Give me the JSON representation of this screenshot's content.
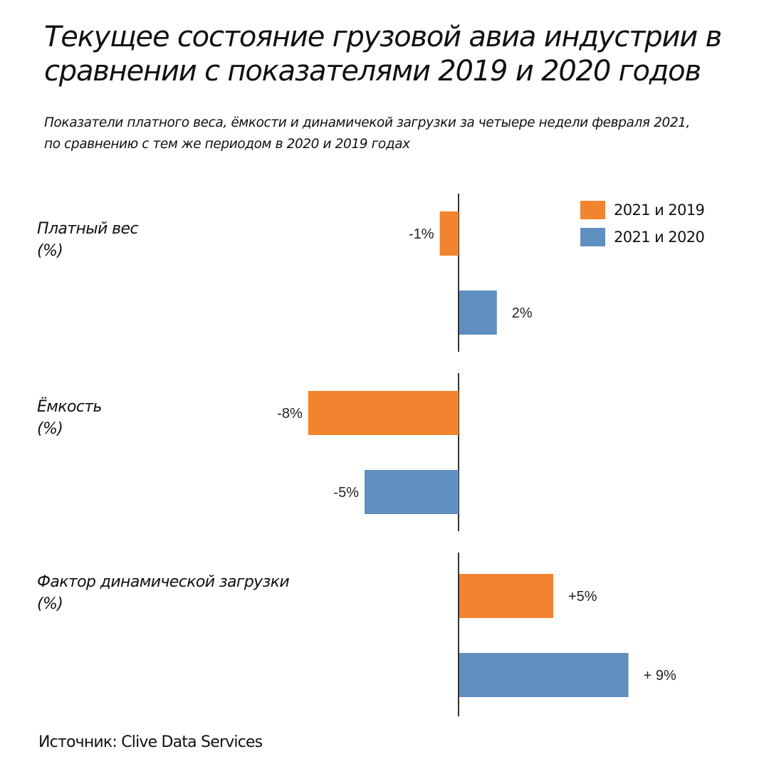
{
  "title_line1": "Текущее состояние грузовой авиа индустрии в",
  "title_line2": "сравнении с показателями 2019 и 2020 годов",
  "subtitle_line1": "Показатели платного веса, ёмкости и динамичекой загрузки за четыере недели февраля 2021,",
  "subtitle_line2": "по сравнению с тем же периодом в 2020 и 2019 годах",
  "source": "Источник: Clive Data Services",
  "colors": {
    "series_2019": "#f28430",
    "series_2020": "#5f8fbe",
    "axis": "#333333"
  },
  "chart_data": {
    "type": "bar",
    "orientation": "horizontal",
    "unit": "%",
    "legend_position": "top-right",
    "grid": false,
    "xlim": [
      -10,
      10
    ],
    "groups": [
      {
        "label_line1": "Платный вес",
        "label_line2": "(%)"
      },
      {
        "label_line1": "Ёмкость",
        "label_line2": "(%)"
      },
      {
        "label_line1": "Фактор динамической загрузки",
        "label_line2": "(%)"
      }
    ],
    "series": [
      {
        "name": "2021 и 2019",
        "values": [
          -1,
          -8,
          5
        ],
        "labels": [
          "-1%",
          "-8%",
          "+5%"
        ]
      },
      {
        "name": "2021 и 2020",
        "values": [
          2,
          -5,
          9
        ],
        "labels": [
          "2%",
          "-5%",
          "+ 9%"
        ]
      }
    ]
  }
}
